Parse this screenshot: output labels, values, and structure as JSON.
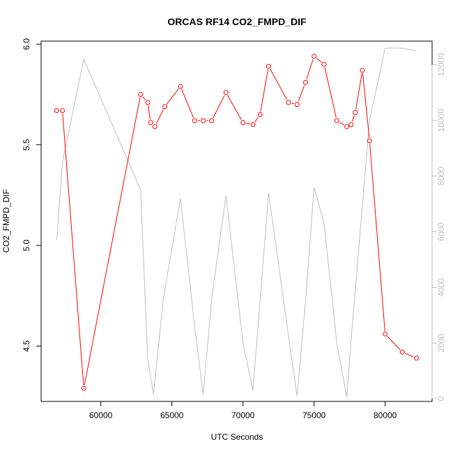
{
  "chart_data": {
    "type": "line",
    "title": "ORCAS RF14 CO2_FMPD_DIF",
    "xlabel": "UTC Seconds",
    "ylabel": "CO2_FMPD_DIF",
    "xlim": [
      55800,
      83300
    ],
    "ylim": [
      4.225,
      6.015
    ],
    "y2lim": [
      -100,
      12850
    ],
    "x_ticks": [
      60000,
      65000,
      70000,
      75000,
      80000
    ],
    "x_tick_labels": [
      "60000",
      "65000",
      "70000",
      "75000",
      "80000"
    ],
    "y_ticks": [
      4.5,
      5.0,
      5.5,
      6.0
    ],
    "y_tick_labels": [
      "4.5",
      "5.0",
      "5.5",
      "6.0"
    ],
    "y2_ticks": [
      0,
      2000,
      4000,
      6000,
      8000,
      10000,
      12000
    ],
    "y2_tick_labels": [
      "0",
      "2000",
      "4000",
      "6000",
      "8000",
      "10000",
      "12000"
    ],
    "grid": false,
    "colors": {
      "primary": "#ff0000",
      "secondary": "#bebebe",
      "axis": "#000000"
    },
    "series": [
      {
        "role": "primary",
        "marker": "open-circle",
        "x": [
          56900,
          57300,
          58800,
          62800,
          63300,
          63500,
          63800,
          64500,
          65600,
          66600,
          67200,
          67800,
          68800,
          70000,
          70700,
          71200,
          71800,
          73200,
          73800,
          74400,
          75000,
          75700,
          76600,
          77300,
          77600,
          77900,
          78400,
          78900,
          80000,
          81200,
          82200
        ],
        "y": [
          5.67,
          5.67,
          4.29,
          5.75,
          5.71,
          5.61,
          5.59,
          5.69,
          5.79,
          5.62,
          5.62,
          5.62,
          5.76,
          5.61,
          5.6,
          5.65,
          5.89,
          5.71,
          5.7,
          5.81,
          5.94,
          5.9,
          5.62,
          5.59,
          5.6,
          5.66,
          5.87,
          5.52,
          4.56,
          4.47,
          4.44
        ]
      },
      {
        "role": "secondary",
        "x": [
          56900,
          57300,
          58800,
          62800,
          63300,
          63700,
          64400,
          65600,
          66600,
          67200,
          67800,
          68800,
          70000,
          70700,
          71800,
          73300,
          73800,
          74400,
          75000,
          75700,
          76600,
          77300,
          77600,
          78900,
          80000,
          81200,
          82200
        ],
        "y": [
          5700,
          8500,
          12200,
          7500,
          1400,
          150,
          3600,
          7200,
          2600,
          150,
          3600,
          7300,
          2000,
          300,
          7400,
          1900,
          100,
          3500,
          7600,
          6300,
          2000,
          50,
          2100,
          10000,
          12600,
          12600,
          12500
        ]
      }
    ]
  }
}
